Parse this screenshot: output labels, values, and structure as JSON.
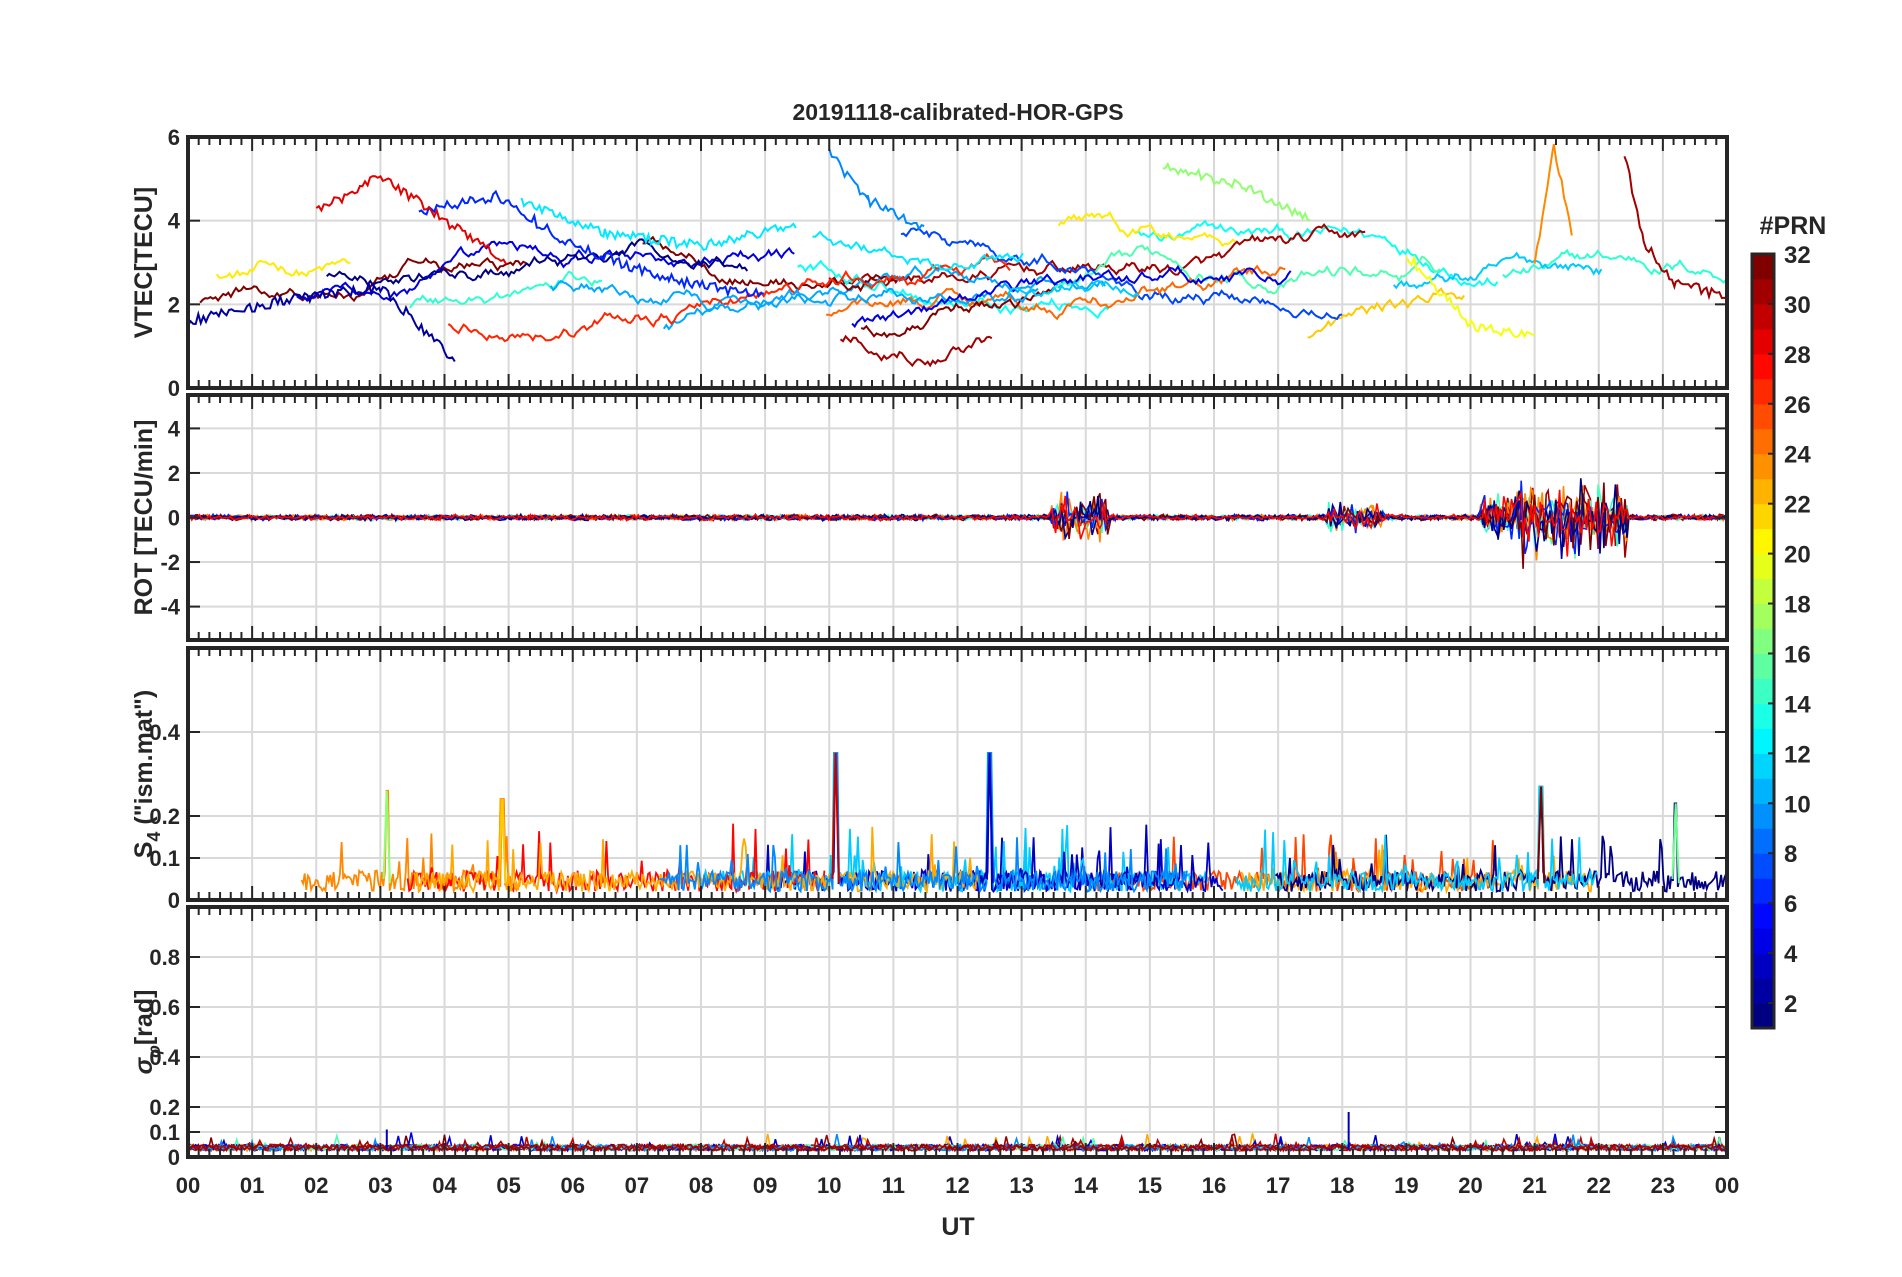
{
  "chart_data": {
    "title": "20191118-calibrated-HOR-GPS",
    "type": "line",
    "x_axis": {
      "label": "UT",
      "range_hours": [
        0,
        24
      ],
      "tick_labels": [
        "00",
        "01",
        "02",
        "03",
        "04",
        "05",
        "06",
        "07",
        "08",
        "09",
        "10",
        "11",
        "12",
        "13",
        "14",
        "15",
        "16",
        "17",
        "18",
        "19",
        "20",
        "21",
        "22",
        "23",
        "00"
      ]
    },
    "panels": [
      {
        "id": "vtec",
        "ylabel": "VTEC[TECU]",
        "ylim": [
          0,
          6
        ],
        "yticks": [
          0,
          2,
          4,
          6
        ],
        "tick_labels": [
          "0",
          "2",
          "4",
          "6"
        ],
        "description_series": [
          {
            "prn": 2,
            "x": [
              0,
              1.5,
              3,
              4.2
            ],
            "y": [
              1.6,
              2.1,
              2.4,
              0.6
            ]
          },
          {
            "prn": 6,
            "x": [
              3.6,
              4.8,
              6,
              7.5,
              9
            ],
            "y": [
              4.2,
              4.6,
              3.4,
              2.6,
              2.2
            ]
          },
          {
            "prn": 9,
            "x": [
              10,
              10.6,
              11.5
            ],
            "y": [
              5.6,
              4.5,
              3.8
            ]
          },
          {
            "prn": 12,
            "x": [
              5.2,
              6.5,
              8,
              9.5
            ],
            "y": [
              4.5,
              3.7,
              3.4,
              3.9
            ]
          },
          {
            "prn": 17,
            "x": [
              15.2,
              16.5,
              17.5
            ],
            "y": [
              5.3,
              4.8,
              4.0
            ]
          },
          {
            "prn": 20,
            "x": [
              19,
              20,
              21
            ],
            "y": [
              3.2,
              1.5,
              1.2
            ]
          },
          {
            "prn": 24,
            "x": [
              21,
              21.3,
              21.6
            ],
            "y": [
              3.0,
              5.8,
              3.5
            ]
          },
          {
            "prn": 29,
            "x": [
              2,
              3,
              4,
              5
            ],
            "y": [
              4.2,
              5.1,
              4.0,
              3.0
            ]
          },
          {
            "prn": 31,
            "x": [
              22.4,
              22.7,
              23.2,
              24
            ],
            "y": [
              5.6,
              3.5,
              2.5,
              2.2
            ]
          }
        ]
      },
      {
        "id": "rot",
        "ylabel": "ROT [TECU/min]",
        "ylim": [
          -5.5,
          5.5
        ],
        "yticks": [
          -4,
          -2,
          0,
          2,
          4
        ],
        "tick_labels": [
          "-4",
          "-2",
          "0",
          "2",
          "4"
        ],
        "bursts": [
          {
            "center_hour": 13.9,
            "amplitude": 1.3
          },
          {
            "center_hour": 18.2,
            "amplitude": 0.8
          },
          {
            "center_hour": 20.6,
            "amplitude": 1.6
          },
          {
            "center_hour": 21.2,
            "amplitude": 2.4
          },
          {
            "center_hour": 22.0,
            "amplitude": 2.0
          }
        ]
      },
      {
        "id": "s4",
        "ylabel_main": "S",
        "ylabel_sub": "4",
        "ylabel_rest": " (\"ism.mat\")",
        "ylim": [
          0,
          0.6
        ],
        "yticks": [
          0,
          0.1,
          0.2,
          0.4
        ],
        "tick_labels": [
          "0",
          "0.1",
          "0.2",
          "0.4"
        ],
        "peaks": [
          {
            "hour": 3.1,
            "value": 0.26
          },
          {
            "hour": 4.9,
            "value": 0.24
          },
          {
            "hour": 10.1,
            "value": 0.35
          },
          {
            "hour": 12.5,
            "value": 0.35
          },
          {
            "hour": 21.1,
            "value": 0.27
          },
          {
            "hour": 23.2,
            "value": 0.23
          }
        ]
      },
      {
        "id": "sigma",
        "ylabel_main": "σ",
        "ylabel_sub": "φ",
        "ylabel_rest": "[rad]",
        "ylim": [
          0,
          1
        ],
        "yticks": [
          0,
          0.1,
          0.2,
          0.4,
          0.6,
          0.8
        ],
        "tick_labels": [
          "0",
          "0.1",
          "0.2",
          "0.4",
          "0.6",
          "0.8"
        ],
        "peaks": [
          {
            "hour": 3.1,
            "value": 0.11
          },
          {
            "hour": 18.1,
            "value": 0.18
          }
        ]
      }
    ],
    "colorbar": {
      "label": "#PRN",
      "range": [
        1,
        32
      ],
      "tick_labels": [
        "2",
        "4",
        "6",
        "8",
        "10",
        "12",
        "14",
        "16",
        "18",
        "20",
        "22",
        "24",
        "26",
        "28",
        "30",
        "32"
      ],
      "colormap": "jet"
    }
  }
}
